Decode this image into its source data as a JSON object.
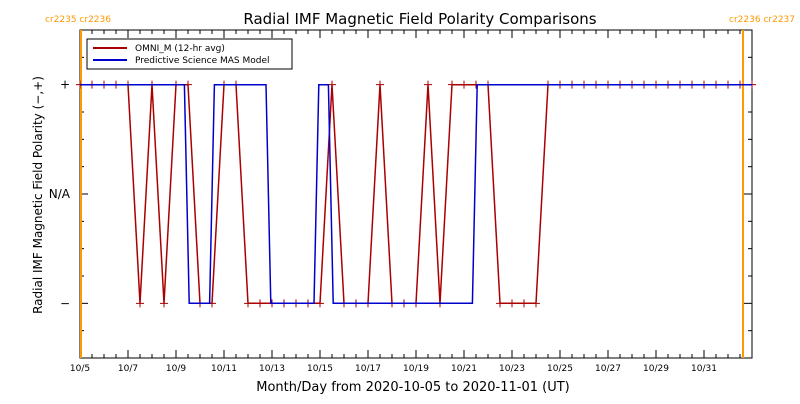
{
  "colors": {
    "background": "#ffffff",
    "axis": "#000000",
    "omni": "#aa0000",
    "mas": "#0000cc",
    "carrington": "#ff9900"
  },
  "chart_data": {
    "type": "line",
    "title": "Radial IMF Magnetic Field Polarity Comparisons",
    "xlabel": "Month/Day from 2020-10-05 to 2020-11-01 (UT)",
    "ylabel": "Radial IMF Magnetic Field Polarity (−,+)",
    "x_unit": "days since 2020-10-05 00:00 UT",
    "xlim": [
      0,
      28
    ],
    "ylim": [
      -1.5,
      1.5
    ],
    "x_ticks": [
      {
        "x": 0,
        "label": "10/5"
      },
      {
        "x": 2,
        "label": "10/7"
      },
      {
        "x": 4,
        "label": "10/9"
      },
      {
        "x": 6,
        "label": "10/11"
      },
      {
        "x": 8,
        "label": "10/13"
      },
      {
        "x": 10,
        "label": "10/15"
      },
      {
        "x": 12,
        "label": "10/17"
      },
      {
        "x": 14,
        "label": "10/19"
      },
      {
        "x": 16,
        "label": "10/21"
      },
      {
        "x": 18,
        "label": "10/23"
      },
      {
        "x": 20,
        "label": "10/25"
      },
      {
        "x": 22,
        "label": "10/27"
      },
      {
        "x": 24,
        "label": "10/29"
      },
      {
        "x": 26,
        "label": "10/31"
      }
    ],
    "y_ticks": [
      {
        "y": 1,
        "label": "+"
      },
      {
        "y": 0,
        "label": "N/A"
      },
      {
        "y": -1,
        "label": "−"
      }
    ],
    "carrington_lines": [
      {
        "x": 0,
        "labels": "cr2235 cr2236",
        "side": "left"
      },
      {
        "x": 28,
        "labels": "cr2236 cr2237",
        "side": "right"
      }
    ],
    "legend": {
      "position": "top-left",
      "entries": [
        {
          "series": "omni",
          "label": "OMNI_M (12-hr avg)"
        },
        {
          "series": "mas",
          "label": "Predictive Science MAS Model"
        }
      ]
    },
    "series": [
      {
        "id": "omni",
        "name": "OMNI_M (12-hr avg)",
        "markers": true,
        "x": [
          0,
          0.5,
          1,
          1.5,
          2,
          2.5,
          3,
          3.5,
          4,
          4.5,
          5,
          5.5,
          6,
          6.5,
          7,
          7.5,
          8,
          8.5,
          9,
          9.5,
          10,
          10.5,
          11,
          11.5,
          12,
          12.5,
          13,
          13.5,
          14,
          14.5,
          15,
          15.5,
          16,
          16.5,
          17,
          17.5,
          18,
          18.5,
          19,
          19.5,
          20,
          20.5,
          21,
          21.5,
          22,
          22.5,
          23,
          23.5,
          24,
          24.5,
          25,
          25.5,
          26,
          26.5,
          27,
          27.5,
          28
        ],
        "y": [
          1,
          1,
          1,
          1,
          1,
          -1,
          1,
          -1,
          1,
          1,
          -1,
          -1,
          1,
          1,
          -1,
          -1,
          -1,
          -1,
          -1,
          -1,
          -1,
          1,
          -1,
          -1,
          -1,
          1,
          -1,
          -1,
          -1,
          1,
          -1,
          1,
          1,
          1,
          1,
          -1,
          -1,
          -1,
          -1,
          1,
          1,
          1,
          1,
          1,
          1,
          1,
          1,
          1,
          1,
          1,
          1,
          1,
          1,
          1,
          1,
          1,
          1
        ]
      },
      {
        "id": "mas",
        "name": "Predictive Science MAS Model",
        "markers": false,
        "x": [
          0,
          4.35,
          4.55,
          5.4,
          5.6,
          6.15,
          6.35,
          7.75,
          7.95,
          9.75,
          9.95,
          10.35,
          10.55,
          16.35,
          16.55,
          28
        ],
        "y": [
          1,
          1,
          -1,
          -1,
          1,
          1,
          1,
          1,
          -1,
          -1,
          1,
          1,
          -1,
          -1,
          1,
          1
        ]
      }
    ]
  }
}
